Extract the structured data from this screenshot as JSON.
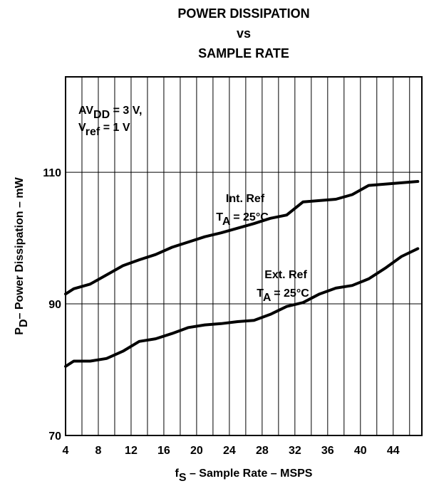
{
  "chart_data": {
    "type": "line",
    "title": [
      "POWER DISSIPATION",
      "vs",
      "SAMPLE RATE"
    ],
    "xlabel": {
      "main": "f",
      "sub": "S",
      "rest": " – Sample Rate – MSPS"
    },
    "ylabel": {
      "main": "P",
      "sub": "D",
      "rest": "– Power Dissipation – mW"
    },
    "xlim": [
      4,
      47.5
    ],
    "ylim": [
      70,
      124.5
    ],
    "xticks": [
      4,
      8,
      12,
      16,
      20,
      24,
      28,
      32,
      36,
      40,
      44
    ],
    "yticks": [
      70,
      90,
      110
    ],
    "xgrid": [
      4,
      6,
      8,
      10,
      12,
      14,
      16,
      18,
      20,
      22,
      24,
      26,
      28,
      30,
      32,
      34,
      36,
      38,
      40,
      42,
      44,
      46
    ],
    "grid": true,
    "annotations": [
      {
        "lines": [
          {
            "main": "AV",
            "sub": "DD",
            "rest": " = 3 V,"
          },
          {
            "main": "V",
            "sub": "ref",
            "rest": " = 1 V"
          }
        ]
      },
      {
        "lines": [
          {
            "main": "Int. Ref",
            "sub": "",
            "rest": ""
          },
          {
            "main": "T",
            "sub": "A",
            "rest": " = 25°C"
          }
        ]
      },
      {
        "lines": [
          {
            "main": "Ext. Ref",
            "sub": "",
            "rest": ""
          },
          {
            "main": "T",
            "sub": "A",
            "rest": " = 25°C"
          }
        ]
      }
    ],
    "series": [
      {
        "label_annotation": 1,
        "x": [
          4,
          5,
          7,
          9,
          11,
          13,
          15,
          17,
          19,
          21,
          23,
          25,
          27,
          29,
          31,
          33,
          35,
          37,
          39,
          41,
          43,
          45,
          47
        ],
        "y": [
          91.5,
          92.3,
          93.0,
          94.4,
          95.8,
          96.7,
          97.5,
          98.6,
          99.4,
          100.2,
          100.8,
          101.5,
          102.2,
          103.0,
          103.5,
          105.5,
          105.7,
          105.9,
          106.6,
          108.0,
          108.2,
          108.4,
          108.6
        ]
      },
      {
        "label_annotation": 2,
        "x": [
          4,
          5,
          7,
          9,
          11,
          13,
          15,
          17,
          19,
          21,
          23,
          25,
          27,
          29,
          31,
          33,
          35,
          37,
          39,
          41,
          43,
          45,
          47
        ],
        "y": [
          80.5,
          81.3,
          81.3,
          81.7,
          82.8,
          84.3,
          84.7,
          85.5,
          86.4,
          86.8,
          87.0,
          87.3,
          87.5,
          88.4,
          89.6,
          90.2,
          91.5,
          92.4,
          92.8,
          93.8,
          95.4,
          97.2,
          98.4
        ]
      }
    ]
  }
}
